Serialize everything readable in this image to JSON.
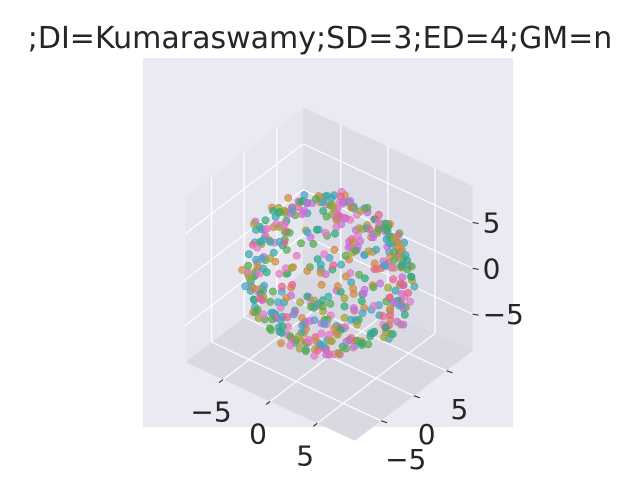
{
  "chart_data": {
    "type": "scatter",
    "projection": "3d",
    "title": ";DI=Kumaraswamy;SD=3;ED=4;GM=n",
    "xlabel": "",
    "ylabel": "",
    "zlabel": "",
    "grid": true,
    "background": "#eaeaf2",
    "xlim": [
      -9,
      9
    ],
    "ylim": [
      -9,
      9
    ],
    "zlim": [
      -9,
      9
    ],
    "x_ticks": [
      {
        "value": -5,
        "label": "−5"
      },
      {
        "value": 0,
        "label": "0"
      },
      {
        "value": 5,
        "label": "5"
      }
    ],
    "y_ticks": [
      {
        "value": -5,
        "label": "−5"
      },
      {
        "value": 0,
        "label": "0"
      },
      {
        "value": 5,
        "label": "5"
      }
    ],
    "z_ticks": [
      {
        "value": -5,
        "label": "−5"
      },
      {
        "value": 0,
        "label": "0"
      },
      {
        "value": 5,
        "label": "5"
      }
    ],
    "point_colors": [
      "#e8638e",
      "#c66fd8",
      "#2fa97a",
      "#3aa8b3",
      "#a2a33a",
      "#e579c8",
      "#4aa4c9",
      "#cf8a44",
      "#57ab4e"
    ],
    "n_points": 480,
    "distribution": "points scattered on the surface of a sphere of radius ~7 centred at the origin"
  }
}
